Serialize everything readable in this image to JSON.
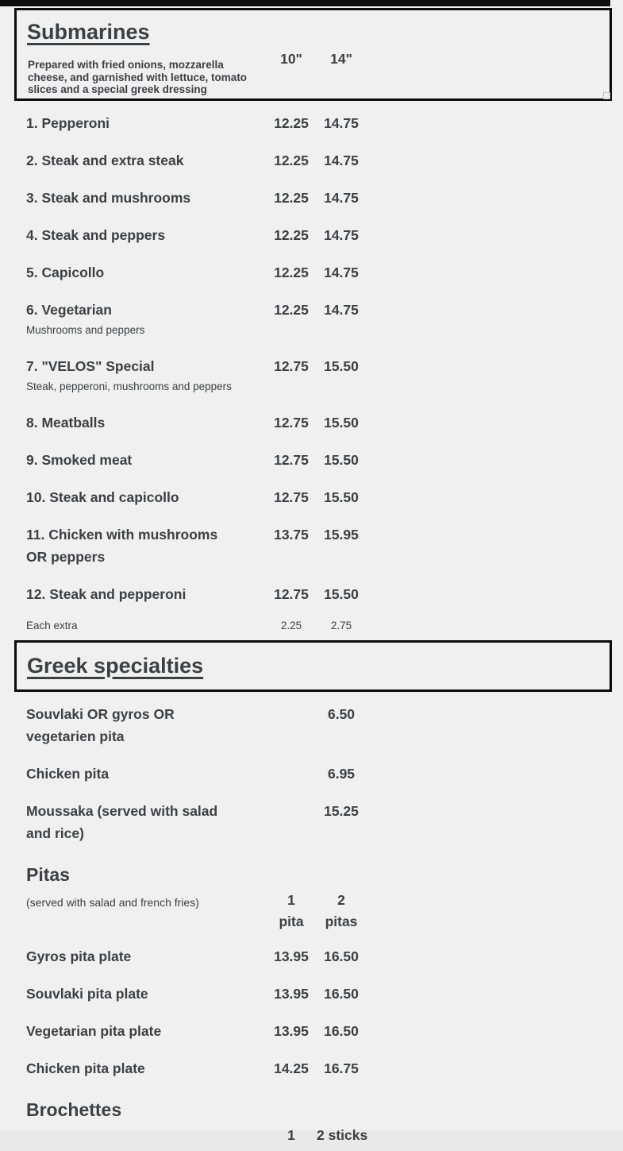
{
  "colors": {
    "page_background": "#f0f0f0",
    "text": "#3c4043",
    "border_black": "#0c0c0c"
  },
  "submarines": {
    "title": "Submarines",
    "description": "Prepared with fried onions, mozzarella cheese, and garnished with lettuce, tomato slices and a special greek dressing",
    "columns": [
      "10\"",
      "14\""
    ],
    "items": [
      {
        "name": "1. Pepperoni",
        "price1": "12.25",
        "price2": "14.75"
      },
      {
        "name": "2. Steak and extra steak",
        "price1": "12.25",
        "price2": "14.75"
      },
      {
        "name": "3. Steak and mushrooms",
        "price1": "12.25",
        "price2": "14.75"
      },
      {
        "name": "4. Steak and peppers",
        "price1": "12.25",
        "price2": "14.75"
      },
      {
        "name": "5. Capicollo",
        "price1": "12.25",
        "price2": "14.75"
      },
      {
        "name": "6. Vegetarian",
        "note": "Mushrooms and peppers",
        "price1": "12.25",
        "price2": "14.75"
      },
      {
        "name": "7. \"VELOS\" Special",
        "note": "Steak, pepperoni, mushrooms and peppers",
        "price1": "12.75",
        "price2": "15.50"
      },
      {
        "name": "8. Meatballs",
        "price1": "12.75",
        "price2": "15.50"
      },
      {
        "name": "9. Smoked meat",
        "price1": "12.75",
        "price2": "15.50"
      },
      {
        "name": "10. Steak and capicollo",
        "price1": "12.75",
        "price2": "15.50"
      },
      {
        "name": "11. Chicken with mushrooms OR peppers",
        "price1": "13.75",
        "price2": "15.95"
      },
      {
        "name": "12. Steak and pepperoni",
        "price1": "12.75",
        "price2": "15.50"
      }
    ],
    "extra_row": {
      "label": "Each extra",
      "price1": "2.25",
      "price2": "2.75"
    }
  },
  "greek": {
    "title": "Greek specialties",
    "items": [
      {
        "name": "Souvlaki OR gyros OR vegetarien pita",
        "price2": "6.50"
      },
      {
        "name": "Chicken pita",
        "price2": "6.95"
      },
      {
        "name": "Moussaka (served with salad and rice)",
        "price2": "15.25"
      }
    ]
  },
  "pitas": {
    "title": "Pitas",
    "note": "(served with salad and french fries)",
    "columns": [
      "1 pita",
      "2 pitas"
    ],
    "items": [
      {
        "name": "Gyros pita plate",
        "price1": "13.95",
        "price2": "16.50"
      },
      {
        "name": "Souvlaki pita plate",
        "price1": "13.95",
        "price2": "16.50"
      },
      {
        "name": "Vegetarian pita plate",
        "price1": "13.95",
        "price2": "16.50"
      },
      {
        "name": "Chicken pita plate",
        "price1": "14.25",
        "price2": "16.75"
      }
    ]
  },
  "brochettes": {
    "title": "Brochettes",
    "columns": [
      "1",
      "2 sticks"
    ]
  }
}
